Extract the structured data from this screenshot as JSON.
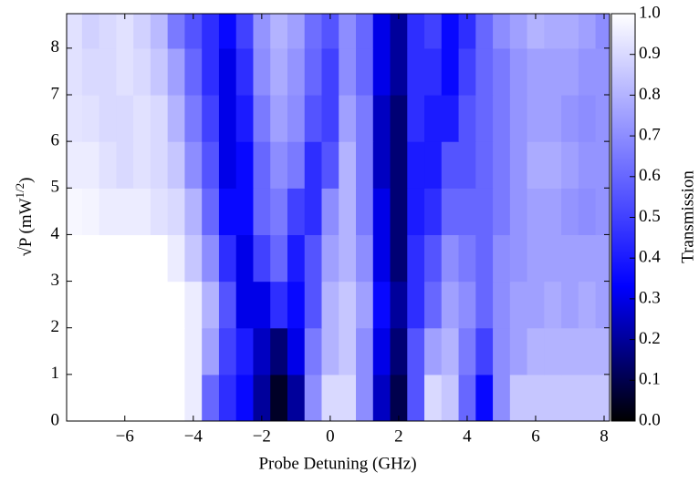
{
  "chart_data": {
    "type": "heatmap",
    "x_label": "Probe Detuning (GHz)",
    "y_label": {
      "base": "√P (mW",
      "exponent": "1/2",
      "close": ")"
    },
    "colorbar_label": "Transmission",
    "x": [
      -7.5,
      -7,
      -6.5,
      -6,
      -5.5,
      -5,
      -4.5,
      -4,
      -3.5,
      -3,
      -2.5,
      -2,
      -1.5,
      -1,
      -0.5,
      0,
      0.5,
      1,
      1.5,
      2,
      2.5,
      3,
      3.5,
      4,
      4.5,
      5,
      5.5,
      6,
      6.5,
      7,
      7.5,
      8
    ],
    "y": [
      0.5,
      1.5,
      2.5,
      3.5,
      4.5,
      5.5,
      6.5,
      7.5,
      8.5
    ],
    "z": [
      [
        1,
        1,
        1,
        1,
        1,
        1,
        1,
        0.95,
        0.6,
        0.45,
        0.35,
        0.2,
        0.05,
        0.2,
        0.7,
        0.9,
        0.9,
        0.7,
        0.25,
        0.1,
        0.55,
        0.9,
        0.85,
        0.6,
        0.35,
        0.7,
        0.85,
        0.85,
        0.85,
        0.85,
        0.85,
        0.85
      ],
      [
        1,
        1,
        1,
        1,
        1,
        1,
        1,
        0.95,
        0.75,
        0.5,
        0.4,
        0.25,
        0.15,
        0.3,
        0.65,
        0.8,
        0.85,
        0.7,
        0.3,
        0.15,
        0.55,
        0.75,
        0.8,
        0.65,
        0.5,
        0.7,
        0.75,
        0.8,
        0.8,
        0.8,
        0.8,
        0.8
      ],
      [
        1,
        1,
        1,
        1,
        1,
        1,
        1,
        0.95,
        0.8,
        0.55,
        0.3,
        0.3,
        0.45,
        0.35,
        0.55,
        0.8,
        0.85,
        0.75,
        0.35,
        0.2,
        0.45,
        0.6,
        0.75,
        0.7,
        0.6,
        0.7,
        0.75,
        0.75,
        0.78,
        0.75,
        0.78,
        0.75
      ],
      [
        1,
        1,
        1,
        1,
        1,
        1,
        0.95,
        0.85,
        0.7,
        0.45,
        0.3,
        0.5,
        0.6,
        0.4,
        0.55,
        0.75,
        0.8,
        0.7,
        0.3,
        0.15,
        0.45,
        0.55,
        0.7,
        0.65,
        0.6,
        0.7,
        0.72,
        0.75,
        0.75,
        0.75,
        0.75,
        0.75
      ],
      [
        0.98,
        0.97,
        0.95,
        0.95,
        0.95,
        0.92,
        0.9,
        0.8,
        0.6,
        0.35,
        0.35,
        0.6,
        0.65,
        0.5,
        0.45,
        0.7,
        0.8,
        0.65,
        0.3,
        0.15,
        0.4,
        0.45,
        0.6,
        0.6,
        0.6,
        0.65,
        0.72,
        0.75,
        0.75,
        0.72,
        0.7,
        0.72
      ],
      [
        0.95,
        0.95,
        0.92,
        0.9,
        0.92,
        0.9,
        0.85,
        0.7,
        0.55,
        0.3,
        0.35,
        0.6,
        0.7,
        0.65,
        0.45,
        0.55,
        0.8,
        0.65,
        0.25,
        0.15,
        0.4,
        0.4,
        0.55,
        0.55,
        0.6,
        0.65,
        0.72,
        0.78,
        0.78,
        0.75,
        0.72,
        0.72
      ],
      [
        0.93,
        0.92,
        0.9,
        0.9,
        0.92,
        0.9,
        0.8,
        0.65,
        0.5,
        0.3,
        0.4,
        0.65,
        0.75,
        0.7,
        0.55,
        0.5,
        0.75,
        0.65,
        0.25,
        0.15,
        0.45,
        0.4,
        0.4,
        0.55,
        0.6,
        0.65,
        0.72,
        0.75,
        0.75,
        0.72,
        0.7,
        0.72
      ],
      [
        0.92,
        0.9,
        0.9,
        0.92,
        0.9,
        0.85,
        0.75,
        0.6,
        0.45,
        0.3,
        0.45,
        0.7,
        0.78,
        0.72,
        0.6,
        0.5,
        0.7,
        0.6,
        0.3,
        0.2,
        0.45,
        0.45,
        0.35,
        0.5,
        0.6,
        0.65,
        0.72,
        0.75,
        0.75,
        0.75,
        0.72,
        0.72
      ],
      [
        0.92,
        0.88,
        0.9,
        0.92,
        0.88,
        0.82,
        0.65,
        0.55,
        0.45,
        0.35,
        0.5,
        0.72,
        0.8,
        0.75,
        0.62,
        0.55,
        0.7,
        0.6,
        0.3,
        0.2,
        0.45,
        0.5,
        0.35,
        0.45,
        0.6,
        0.7,
        0.75,
        0.8,
        0.78,
        0.78,
        0.75,
        0.7
      ]
    ],
    "xlim": [
      -7.7,
      8.16
    ],
    "ylim": [
      0,
      8.74
    ],
    "xticks": [
      {
        "value": -6,
        "label": "−6"
      },
      {
        "value": -4,
        "label": "−4"
      },
      {
        "value": -2,
        "label": "−2"
      },
      0,
      2,
      4,
      6,
      8
    ],
    "yticks": [
      0,
      1,
      2,
      3,
      4,
      5,
      6,
      7,
      8
    ],
    "clim": [
      0,
      1
    ],
    "cticks": [
      {
        "value": 0,
        "label": "0.0"
      },
      {
        "value": 0.1,
        "label": "0.1"
      },
      {
        "value": 0.2,
        "label": "0.2"
      },
      {
        "value": 0.3,
        "label": "0.3"
      },
      {
        "value": 0.4,
        "label": "0.4"
      },
      {
        "value": 0.5,
        "label": "0.5"
      },
      {
        "value": 0.6,
        "label": "0.6"
      },
      {
        "value": 0.7,
        "label": "0.7"
      },
      {
        "value": 0.8,
        "label": "0.8"
      },
      {
        "value": 0.9,
        "label": "0.9"
      },
      {
        "value": 1,
        "label": "1.0"
      }
    ],
    "colormap": [
      {
        "value": 0,
        "color": "#000000"
      },
      {
        "value": 0.33,
        "color": "#0000ff"
      },
      {
        "value": 1,
        "color": "#ffffff"
      }
    ]
  }
}
